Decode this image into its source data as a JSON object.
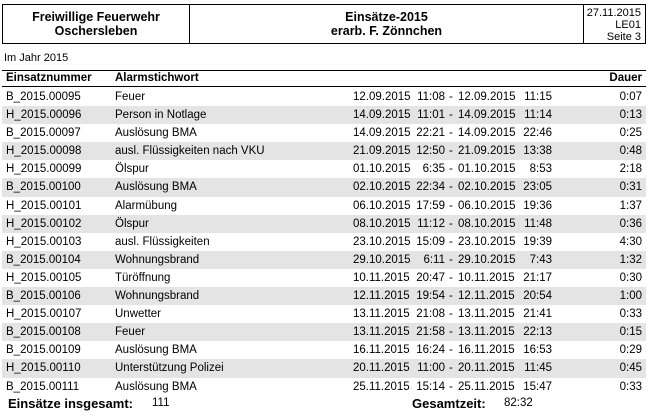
{
  "header": {
    "org_line1": "Freiwillige Feuerwehr",
    "org_line2": "Oschersleben",
    "title_line1": "Einsätze-2015",
    "title_line2": "erarb. F. Zönnchen",
    "date": "27.11.2015",
    "code": "LE01",
    "page": "Seite 3"
  },
  "subtitle": "Im Jahr 2015",
  "columns": {
    "nummer": "Einsatznummer",
    "stichwort": "Alarmstichwort",
    "dauer": "Dauer"
  },
  "rows": [
    {
      "nr": "B_2015.00095",
      "kw": "Feuer",
      "bd": "12.09.2015",
      "bt": "11:08",
      "ed": "12.09.2015",
      "et": "11:15",
      "du": "0:07"
    },
    {
      "nr": "H_2015.00096",
      "kw": "Person in Notlage",
      "bd": "14.09.2015",
      "bt": "11:01",
      "ed": "14.09.2015",
      "et": "11:14",
      "du": "0:13"
    },
    {
      "nr": "B_2015.00097",
      "kw": "Auslösung BMA",
      "bd": "14.09.2015",
      "bt": "22:21",
      "ed": "14.09.2015",
      "et": "22:46",
      "du": "0:25"
    },
    {
      "nr": "H_2015.00098",
      "kw": "ausl. Flüssigkeiten nach VKU",
      "bd": "21.09.2015",
      "bt": "12:50",
      "ed": "21.09.2015",
      "et": "13:38",
      "du": "0:48"
    },
    {
      "nr": "H_2015.00099",
      "kw": "Ölspur",
      "bd": "01.10.2015",
      "bt": "6:35",
      "ed": "01.10.2015",
      "et": "8:53",
      "du": "2:18"
    },
    {
      "nr": "B_2015.00100",
      "kw": "Auslösung BMA",
      "bd": "02.10.2015",
      "bt": "22:34",
      "ed": "02.10.2015",
      "et": "23:05",
      "du": "0:31"
    },
    {
      "nr": "H_2015.00101",
      "kw": "Alarmübung",
      "bd": "06.10.2015",
      "bt": "17:59",
      "ed": "06.10.2015",
      "et": "19:36",
      "du": "1:37"
    },
    {
      "nr": "H_2015.00102",
      "kw": "Ölspur",
      "bd": "08.10.2015",
      "bt": "11:12",
      "ed": "08.10.2015",
      "et": "11:48",
      "du": "0:36"
    },
    {
      "nr": "H_2015.00103",
      "kw": "ausl. Flüssigkeiten",
      "bd": "23.10.2015",
      "bt": "15:09",
      "ed": "23.10.2015",
      "et": "19:39",
      "du": "4:30"
    },
    {
      "nr": "B_2015.00104",
      "kw": "Wohnungsbrand",
      "bd": "29.10.2015",
      "bt": "6:11",
      "ed": "29.10.2015",
      "et": "7:43",
      "du": "1:32"
    },
    {
      "nr": "H_2015.00105",
      "kw": "Türöffnung",
      "bd": "10.11.2015",
      "bt": "20:47",
      "ed": "10.11.2015",
      "et": "21:17",
      "du": "0:30"
    },
    {
      "nr": "B_2015.00106",
      "kw": "Wohnungsbrand",
      "bd": "12.11.2015",
      "bt": "19:54",
      "ed": "12.11.2015",
      "et": "20:54",
      "du": "1:00"
    },
    {
      "nr": "H_2015.00107",
      "kw": "Unwetter",
      "bd": "13.11.2015",
      "bt": "21:08",
      "ed": "13.11.2015",
      "et": "21:41",
      "du": "0:33"
    },
    {
      "nr": "B_2015.00108",
      "kw": "Feuer",
      "bd": "13.11.2015",
      "bt": "21:58",
      "ed": "13.11.2015",
      "et": "22:13",
      "du": "0:15"
    },
    {
      "nr": "B_2015.00109",
      "kw": "Auslösung BMA",
      "bd": "16.11.2015",
      "bt": "16:24",
      "ed": "16.11.2015",
      "et": "16:53",
      "du": "0:29"
    },
    {
      "nr": "H_2015.00110",
      "kw": "Unterstützung Polizei",
      "bd": "20.11.2015",
      "bt": "11:00",
      "ed": "20.11.2015",
      "et": "11:45",
      "du": "0:45"
    },
    {
      "nr": "B_2015.00111",
      "kw": "Auslösung BMA",
      "bd": "25.11.2015",
      "bt": "15:14",
      "ed": "25.11.2015",
      "et": "15:47",
      "du": "0:33"
    }
  ],
  "footer": {
    "total_label": "Einsätze insgesamt:",
    "total_value": "111",
    "time_label": "Gesamtzeit:",
    "time_value": "82:32"
  }
}
